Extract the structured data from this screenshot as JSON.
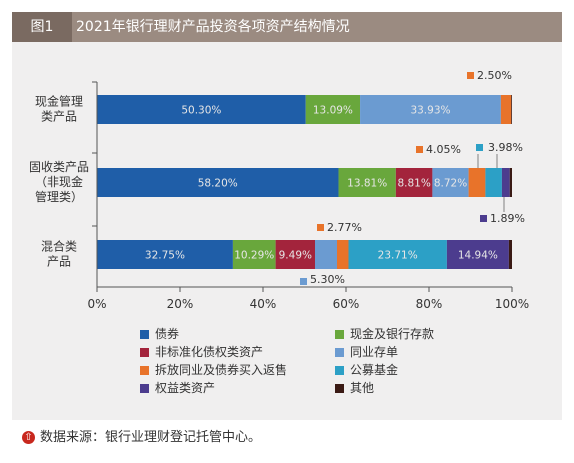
{
  "figure": {
    "number": "图1",
    "title": "2021年银行理财产品投资各项资产结构情况"
  },
  "source": {
    "icon": "arrow-up-circle-icon",
    "text": "数据来源：银行业理财登记托管中心。"
  },
  "chart_data": {
    "type": "bar",
    "orientation": "horizontal",
    "stacked": true,
    "categories": [
      [
        "现金管理",
        "类产品"
      ],
      [
        "固收类产品",
        "（非现金",
        "管理类）"
      ],
      [
        "混合类",
        "产品"
      ]
    ],
    "series": [
      {
        "name": "债券",
        "color": "#1f5ea8",
        "values": [
          50.3,
          58.2,
          32.75
        ],
        "labels": [
          "50.30%",
          "58.20%",
          "32.75%"
        ]
      },
      {
        "name": "现金及银行存款",
        "color": "#69a73c",
        "values": [
          13.09,
          13.81,
          10.29
        ],
        "labels": [
          "13.09%",
          "13.81%",
          "10.29%"
        ]
      },
      {
        "name": "非标准化债权类资产",
        "color": "#a3243c",
        "values": [
          0,
          8.81,
          9.49
        ],
        "labels": [
          "",
          "8.81%",
          "9.49%"
        ]
      },
      {
        "name": "同业存单",
        "color": "#6b9bd1",
        "values": [
          33.93,
          8.72,
          5.3
        ],
        "labels": [
          "33.93%",
          "8.72%",
          "5.30%"
        ]
      },
      {
        "name": "拆放同业及债券买入返售",
        "color": "#e8732a",
        "values": [
          2.5,
          4.05,
          2.77
        ],
        "labels": [
          "2.50%",
          "4.05%",
          "2.77%"
        ]
      },
      {
        "name": "公募基金",
        "color": "#2ca0c6",
        "values": [
          0,
          3.98,
          23.71
        ],
        "labels": [
          "",
          "3.98%",
          "23.71%"
        ]
      },
      {
        "name": "权益类资产",
        "color": "#4c3c8e",
        "values": [
          0,
          1.89,
          14.94
        ],
        "labels": [
          "",
          "1.89%",
          "14.94%"
        ]
      },
      {
        "name": "其他",
        "color": "#3a1a14",
        "values": [
          0.18,
          0.54,
          0.75
        ],
        "labels": [
          "",
          "",
          ""
        ]
      }
    ],
    "xlim": [
      0,
      100
    ],
    "xticks": [
      "0%",
      "20%",
      "40%",
      "60%",
      "80%",
      "100%"
    ],
    "grid": false,
    "legend_position": "bottom"
  }
}
